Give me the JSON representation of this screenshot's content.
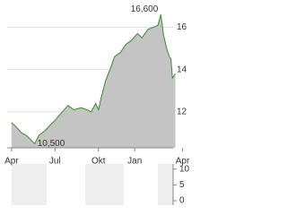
{
  "chart_data": [
    {
      "type": "area",
      "x": [
        0,
        0.3,
        0.7,
        1.0,
        1.6,
        1.9,
        2.3,
        2.7,
        3.0,
        3.5,
        3.9,
        4.3,
        4.8,
        5.2,
        5.5,
        5.8,
        6.0,
        6.2,
        6.5,
        6.8,
        7.1,
        7.5,
        7.9,
        8.3,
        8.7,
        9.0,
        9.4,
        9.8,
        10.1,
        10.3,
        10.5,
        10.7,
        10.9,
        11.0,
        11.1,
        11.3
      ],
      "series": [
        {
          "color": "#3a8a2e",
          "values": [
            11.5,
            11.3,
            11.0,
            10.9,
            10.5,
            10.9,
            11.1,
            11.4,
            11.6,
            12.0,
            12.3,
            12.1,
            12.2,
            12.1,
            12.0,
            12.4,
            12.1,
            12.7,
            13.5,
            14.0,
            14.6,
            14.8,
            15.2,
            15.4,
            15.7,
            15.5,
            15.9,
            16.0,
            16.1,
            16.6,
            15.6,
            15.0,
            14.6,
            14.5,
            13.6,
            13.8
          ]
        }
      ],
      "fill": "#c4c4c4",
      "xlim": [
        -0.3,
        12.2
      ],
      "xticks": [
        {
          "value": 0,
          "label": "Apr"
        },
        {
          "value": 3,
          "label": "Jul"
        },
        {
          "value": 6,
          "label": "Okt"
        },
        {
          "value": 8.5,
          "label": "Jan"
        },
        {
          "value": 11.8,
          "label": "Apr"
        }
      ],
      "ylim": [
        10.3,
        16.95
      ],
      "yticks": [
        12,
        14,
        16
      ],
      "grid": true,
      "annotations": [
        {
          "label": "16,600",
          "x": 10.3,
          "y": 16.6
        },
        {
          "label": "10,500",
          "x": 1.6,
          "y": 10.5
        }
      ]
    },
    {
      "type": "volume",
      "ylim": [
        0,
        10.5
      ],
      "yticks": [
        0,
        5,
        10
      ]
    }
  ]
}
